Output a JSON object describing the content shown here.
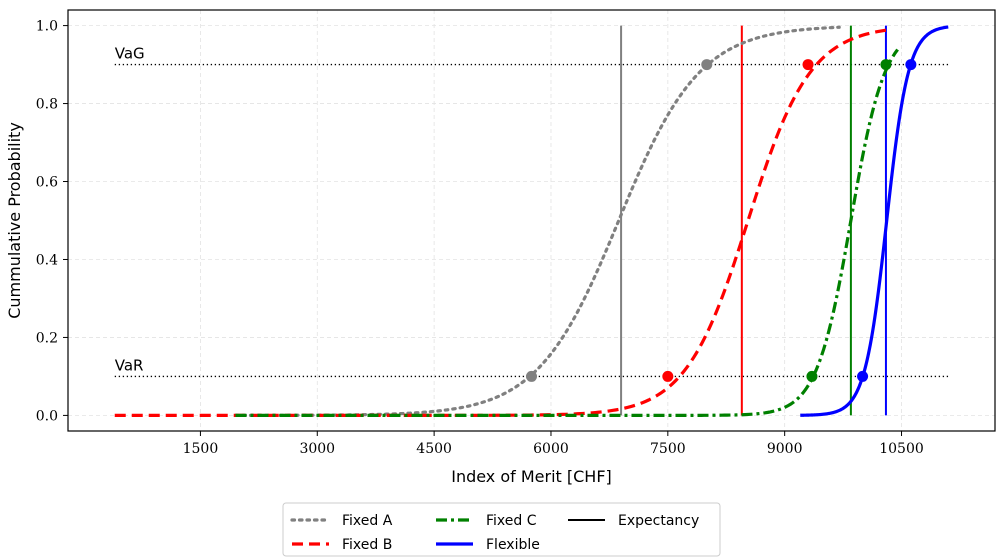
{
  "chart_data": {
    "type": "line",
    "title": "",
    "xlabel": "Index of Merit [CHF]",
    "ylabel": "Cummulative Probability",
    "xlim": [
      -200,
      11700
    ],
    "ylim": [
      -0.04,
      1.04
    ],
    "xticks": [
      1500,
      3000,
      4500,
      6000,
      7500,
      9000,
      10500
    ],
    "xtick_labels": [
      "1500",
      "3000",
      "4500",
      "6000",
      "7500",
      "9000",
      "10500"
    ],
    "yticks": [
      0.0,
      0.2,
      0.4,
      0.6,
      0.8,
      1.0
    ],
    "ytick_labels": [
      "0.0",
      "0.2",
      "0.4",
      "0.6",
      "0.8",
      "1.0"
    ],
    "grid": true,
    "legend_position": "bottom-center",
    "series": [
      {
        "name": "Fixed A",
        "color": "#808080",
        "style": "dotted",
        "x": [
          2000,
          3000,
          4000,
          4500,
          5000,
          5300,
          5600,
          5750,
          6000,
          6300,
          6600,
          6900,
          7200,
          7500,
          7800,
          8000,
          8300,
          8600,
          9000,
          9400,
          9700
        ],
        "y": [
          0.0,
          0.001,
          0.004,
          0.008,
          0.02,
          0.035,
          0.07,
          0.1,
          0.16,
          0.26,
          0.38,
          0.48,
          0.6,
          0.72,
          0.83,
          0.9,
          0.95,
          0.975,
          0.99,
          0.998,
          1.0
        ],
        "cdf": {
          "mu": 6870,
          "s": 520,
          "xmin": 1950,
          "xmax": 9700
        },
        "markers": [
          {
            "x": 5750,
            "y": 0.1
          },
          {
            "x": 8000,
            "y": 0.9
          }
        ],
        "expectancy": 6900
      },
      {
        "name": "Fixed B",
        "color": "#ff0000",
        "style": "dashed",
        "x": [
          400,
          2000,
          4000,
          5000,
          6000,
          6500,
          7000,
          7500,
          7800,
          8100,
          8400,
          8700,
          9000,
          9300,
          9600,
          9900,
          10300
        ],
        "y": [
          0.0,
          0.0,
          0.003,
          0.008,
          0.02,
          0.035,
          0.06,
          0.1,
          0.16,
          0.26,
          0.4,
          0.55,
          0.72,
          0.9,
          0.96,
          0.99,
          1.0
        ],
        "cdf": {
          "mu": 8530,
          "s": 400,
          "xmin": 400,
          "xmax": 10300
        },
        "markers": [
          {
            "x": 7500,
            "y": 0.1
          },
          {
            "x": 9300,
            "y": 0.9
          }
        ],
        "expectancy": 8450
      },
      {
        "name": "Fixed C",
        "color": "#008000",
        "style": "dashdot",
        "x": [
          2000,
          4000,
          6000,
          7000,
          8000,
          8700,
          9100,
          9350,
          9600,
          9800,
          10000,
          10200,
          10300,
          10450
        ],
        "y": [
          0.0,
          0.0,
          0.005,
          0.01,
          0.02,
          0.04,
          0.07,
          0.1,
          0.2,
          0.33,
          0.55,
          0.8,
          0.9,
          1.0
        ],
        "cdf": {
          "mu": 9850,
          "s": 220,
          "xmin": 1950,
          "xmax": 10450
        },
        "markers": [
          {
            "x": 9350,
            "y": 0.1
          },
          {
            "x": 10300,
            "y": 0.9
          }
        ],
        "expectancy": 9850
      },
      {
        "name": "Flexible",
        "color": "#0000ff",
        "style": "solid",
        "x": [
          9200,
          9600,
          9800,
          9950,
          10050,
          10150,
          10250,
          10350,
          10450,
          10600,
          10750,
          10900,
          11100
        ],
        "y": [
          0.0,
          0.005,
          0.02,
          0.06,
          0.1,
          0.2,
          0.35,
          0.5,
          0.7,
          0.9,
          0.97,
          1.0,
          1.0
        ],
        "cdf": {
          "mu": 10310,
          "s": 140,
          "xmin": 9200,
          "xmax": 11100
        },
        "markers": [
          {
            "x": 10000,
            "y": 0.1
          },
          {
            "x": 10620,
            "y": 0.9
          }
        ],
        "expectancy": 10300
      }
    ],
    "reference_lines": [
      {
        "label": "VaG",
        "y": 0.9,
        "x_start": 400,
        "x_end": 11100
      },
      {
        "label": "VaR",
        "y": 0.1,
        "x_start": 400,
        "x_end": 11100
      }
    ],
    "legend": [
      {
        "label": "Fixed A",
        "color": "#808080",
        "style": "dotted"
      },
      {
        "label": "Fixed B",
        "color": "#ff0000",
        "style": "dashed"
      },
      {
        "label": "Fixed C",
        "color": "#008000",
        "style": "dashdot"
      },
      {
        "label": "Flexible",
        "color": "#0000ff",
        "style": "solid"
      },
      {
        "label": "Expectancy",
        "color": "#000000",
        "style": "solid-thin"
      }
    ]
  }
}
